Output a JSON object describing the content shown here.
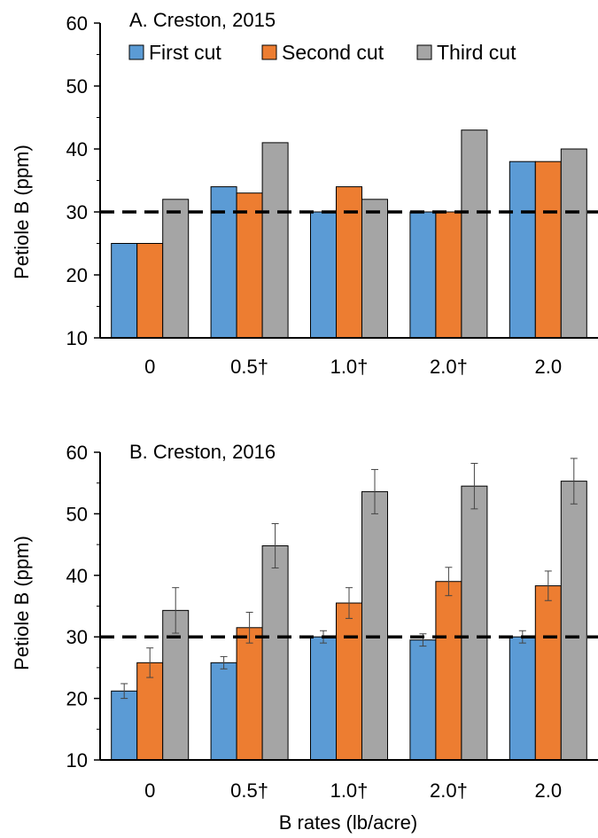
{
  "colors": {
    "first_cut": "#5b9bd5",
    "second_cut": "#ed7d31",
    "third_cut": "#a5a5a5",
    "bar_outline": "#000000",
    "threshold_line": "#000000"
  },
  "legend": {
    "labels": [
      "First cut",
      "Second cut",
      "Third cut"
    ]
  },
  "shared_xlabel": "B rates (lb/acre)",
  "chart_data": [
    {
      "type": "bar",
      "title": "A. Creston, 2015",
      "xlabel": "",
      "ylabel": "Petiole B (ppm)",
      "ylim": [
        10,
        60
      ],
      "yticks": [
        10,
        20,
        30,
        40,
        50,
        60
      ],
      "categories": [
        "0",
        "0.5†",
        "1.0†",
        "2.0†",
        "2.0"
      ],
      "series": [
        {
          "name": "First cut",
          "color_key": "first_cut",
          "values": [
            25,
            34,
            30,
            30,
            38
          ]
        },
        {
          "name": "Second cut",
          "color_key": "second_cut",
          "values": [
            25,
            33,
            34,
            30,
            38
          ]
        },
        {
          "name": "Third cut",
          "color_key": "third_cut",
          "values": [
            32,
            41,
            32,
            43,
            40
          ]
        }
      ],
      "reference_line": {
        "value": 30,
        "style": "dashed"
      },
      "legend_position": "top",
      "grid": false
    },
    {
      "type": "bar",
      "title": "B. Creston, 2016",
      "xlabel": "B rates (lb/acre)",
      "ylabel": "Petiole B (ppm)",
      "ylim": [
        10,
        60
      ],
      "yticks": [
        10,
        20,
        30,
        40,
        50,
        60
      ],
      "categories": [
        "0",
        "0.5†",
        "1.0†",
        "2.0†",
        "2.0"
      ],
      "series": [
        {
          "name": "First cut",
          "color_key": "first_cut",
          "values": [
            21.2,
            25.8,
            30.0,
            29.5,
            30.0
          ],
          "errors": [
            1.2,
            1.0,
            1.0,
            1.0,
            1.0
          ]
        },
        {
          "name": "Second cut",
          "color_key": "second_cut",
          "values": [
            25.8,
            31.5,
            35.5,
            39.0,
            38.3
          ],
          "errors": [
            2.4,
            2.5,
            2.5,
            2.3,
            2.4
          ]
        },
        {
          "name": "Third cut",
          "color_key": "third_cut",
          "values": [
            34.3,
            44.8,
            53.6,
            54.5,
            55.3
          ],
          "errors": [
            3.7,
            3.6,
            3.6,
            3.7,
            3.7
          ]
        }
      ],
      "reference_line": {
        "value": 30,
        "style": "dashed"
      },
      "legend_position": "none",
      "grid": false
    }
  ]
}
